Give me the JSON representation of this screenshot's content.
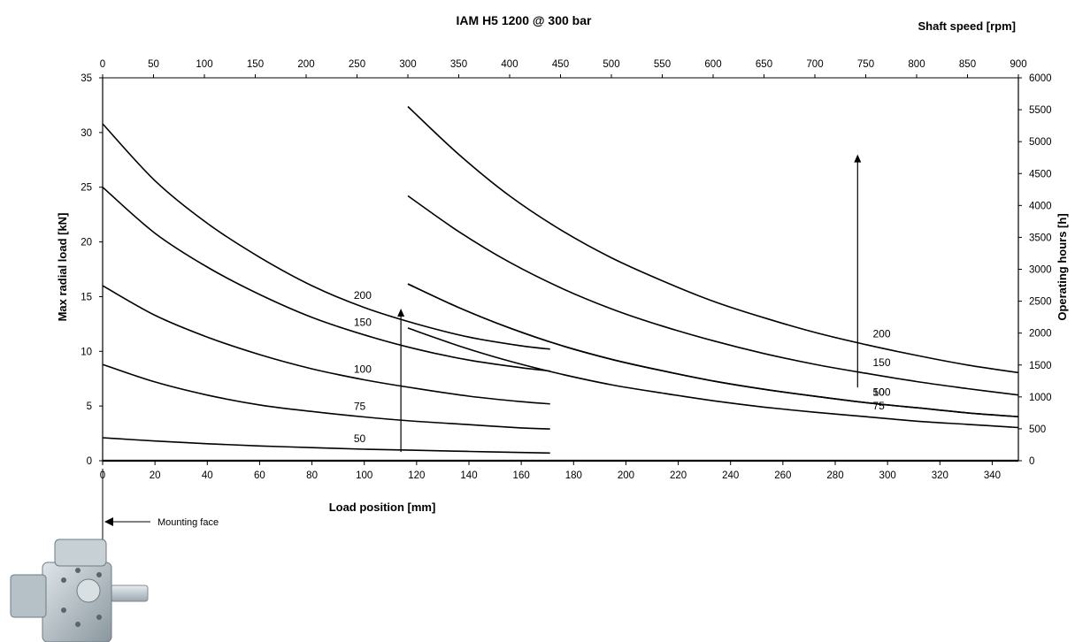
{
  "chart_data": {
    "type": "line",
    "title": "IAM H5 1200 @ 300 bar",
    "xlabel": "Load position [mm]",
    "ylabel": "Max radial load [kN]",
    "y2label": "Operating hours [h]",
    "x2label": "Shaft speed [rpm]",
    "xlim": [
      0,
      350
    ],
    "ylim": [
      0,
      35
    ],
    "y2lim": [
      0,
      6000
    ],
    "x2lim": [
      0,
      900
    ],
    "x_ticks": [
      0,
      20,
      40,
      60,
      80,
      100,
      120,
      140,
      160,
      180,
      200,
      220,
      240,
      260,
      280,
      300,
      320,
      340
    ],
    "y_ticks": [
      0,
      5,
      10,
      15,
      20,
      25,
      30,
      35
    ],
    "y2_ticks": [
      0,
      500,
      1000,
      1500,
      2000,
      2500,
      3000,
      3500,
      4000,
      4500,
      5000,
      5500,
      6000
    ],
    "x2_ticks": [
      0,
      50,
      100,
      150,
      200,
      250,
      300,
      350,
      400,
      450,
      500,
      550,
      600,
      650,
      700,
      750,
      800,
      850,
      900
    ],
    "grid": false,
    "left_series": [
      {
        "name": "200",
        "x": [
          0,
          20,
          40,
          60,
          80,
          100,
          120,
          140,
          160,
          171
        ],
        "y": [
          30.8,
          25.6,
          21.7,
          18.6,
          16.0,
          14.0,
          12.5,
          11.3,
          10.5,
          10.2
        ]
      },
      {
        "name": "150",
        "x": [
          0,
          20,
          40,
          60,
          80,
          100,
          120,
          140,
          160,
          171
        ],
        "y": [
          25.0,
          20.8,
          17.7,
          15.2,
          13.1,
          11.5,
          10.2,
          9.2,
          8.5,
          8.2
        ]
      },
      {
        "name": "100",
        "x": [
          0,
          20,
          40,
          60,
          80,
          100,
          120,
          140,
          160,
          171
        ],
        "y": [
          16.0,
          13.3,
          11.3,
          9.7,
          8.4,
          7.4,
          6.6,
          5.9,
          5.4,
          5.2
        ]
      },
      {
        "name": "75",
        "x": [
          0,
          20,
          40,
          60,
          80,
          100,
          120,
          140,
          160,
          171
        ],
        "y": [
          8.8,
          7.2,
          6.0,
          5.1,
          4.5,
          4.0,
          3.6,
          3.3,
          3.0,
          2.9
        ]
      },
      {
        "name": "50",
        "x": [
          0,
          20,
          40,
          60,
          80,
          100,
          120,
          140,
          160,
          171
        ],
        "y": [
          2.1,
          1.8,
          1.55,
          1.35,
          1.2,
          1.05,
          0.95,
          0.85,
          0.75,
          0.7
        ]
      }
    ],
    "right_series": [
      {
        "name": "200",
        "x2": [
          300,
          350,
          400,
          450,
          500,
          550,
          600,
          650,
          700,
          750,
          800,
          850,
          900
        ],
        "y2": [
          5550,
          4800,
          4150,
          3620,
          3180,
          2820,
          2500,
          2240,
          2010,
          1820,
          1650,
          1500,
          1380
        ]
      },
      {
        "name": "150",
        "x2": [
          300,
          350,
          400,
          450,
          500,
          550,
          600,
          650,
          700,
          750,
          800,
          850,
          900
        ],
        "y2": [
          4150,
          3590,
          3110,
          2710,
          2380,
          2110,
          1880,
          1680,
          1510,
          1370,
          1240,
          1130,
          1030
        ]
      },
      {
        "name": "100",
        "x2": [
          300,
          350,
          400,
          450,
          500,
          550,
          600,
          650,
          700,
          750,
          800,
          850,
          900
        ],
        "y2": [
          2770,
          2400,
          2080,
          1810,
          1590,
          1410,
          1250,
          1120,
          1010,
          910,
          830,
          750,
          690
        ]
      },
      {
        "name": "75",
        "x2": [
          300,
          350,
          400,
          450,
          500,
          550,
          600,
          650,
          700,
          750,
          800,
          850,
          900
        ],
        "y2": [
          2080,
          1800,
          1560,
          1360,
          1190,
          1060,
          940,
          840,
          760,
          690,
          620,
          570,
          520
        ]
      },
      {
        "name": "50",
        "x2": [
          300,
          350,
          400,
          450,
          500,
          550,
          600,
          650,
          700,
          750,
          800,
          850,
          900
        ],
        "y2": [
          2770,
          2400,
          2080,
          1810,
          1590,
          1410,
          1250,
          1120,
          1010,
          910,
          830,
          750,
          690
        ]
      }
    ],
    "annotations": {
      "mounting_face": "Mounting face"
    }
  }
}
